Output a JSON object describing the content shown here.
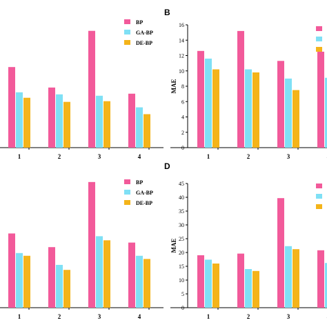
{
  "colors": {
    "BP": "#f25a9a",
    "GA-BP": "#7fe0f5",
    "DE-BP": "#f4b41a"
  },
  "chart_data": [
    {
      "panel": "",
      "type": "bar",
      "categories": [
        "1",
        "2",
        "3",
        "4"
      ],
      "series": [
        {
          "name": "BP",
          "values": [
            11.8,
            8.8,
            17.1,
            7.9
          ]
        },
        {
          "name": "GA-BP",
          "values": [
            8.1,
            7.8,
            7.6,
            5.9
          ]
        },
        {
          "name": "DE-BP",
          "values": [
            7.3,
            6.7,
            6.8,
            4.9
          ]
        }
      ],
      "ylabel": "",
      "ylim": [
        0,
        20
      ],
      "yticks": [],
      "legend": "top-right"
    },
    {
      "panel": "B",
      "type": "bar",
      "categories": [
        "1",
        "2",
        "3",
        "4"
      ],
      "series": [
        {
          "name": "",
          "values": [
            12.6,
            15.2,
            11.3,
            12.5
          ]
        },
        {
          "name": "",
          "values": [
            11.6,
            10.2,
            9.0,
            9.1
          ]
        },
        {
          "name": "",
          "values": [
            10.2,
            9.8,
            7.5,
            7.5
          ]
        }
      ],
      "ylabel": "MAE",
      "ylim": [
        0,
        16
      ],
      "yticks": [
        "0",
        "2",
        "4",
        "6",
        "8",
        "10",
        "12",
        "14",
        "16"
      ],
      "legend": "top-right"
    },
    {
      "panel": "",
      "type": "bar",
      "categories": [
        "1",
        "2",
        "3",
        "4"
      ],
      "series": [
        {
          "name": "BP",
          "values": [
            16.3,
            13.3,
            27.6,
            14.3
          ]
        },
        {
          "name": "GA-BP",
          "values": [
            12.0,
            9.4,
            15.7,
            11.4
          ]
        },
        {
          "name": "DE-BP",
          "values": [
            11.4,
            8.3,
            14.8,
            10.7
          ]
        }
      ],
      "ylabel": "",
      "ylim": [
        0,
        30
      ],
      "yticks": [],
      "legend": "top-right"
    },
    {
      "panel": "D",
      "type": "bar",
      "categories": [
        "1",
        "2",
        "3",
        "4"
      ],
      "series": [
        {
          "name": "",
          "values": [
            19.0,
            19.6,
            39.7,
            20.8
          ]
        },
        {
          "name": "",
          "values": [
            17.4,
            14.0,
            22.3,
            16.2
          ]
        },
        {
          "name": "",
          "values": [
            16.0,
            13.3,
            21.2,
            16.2
          ]
        }
      ],
      "ylabel": "MAE",
      "ylim": [
        0,
        45
      ],
      "yticks": [
        "0",
        "5",
        "10",
        "15",
        "20",
        "25",
        "30",
        "35",
        "40",
        "45"
      ],
      "legend": "top-right"
    }
  ]
}
